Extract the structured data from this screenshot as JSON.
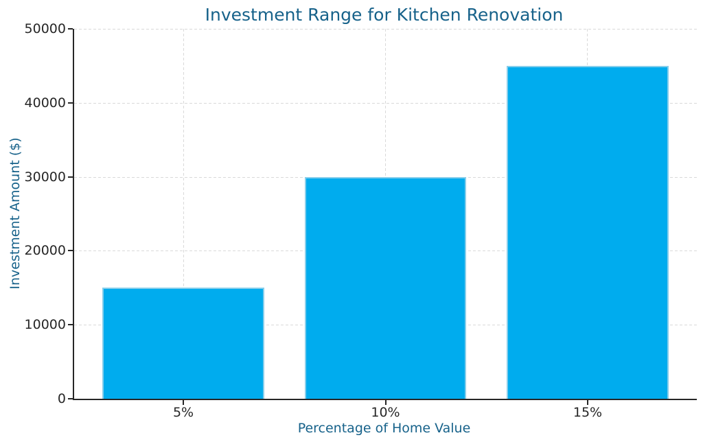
{
  "chart_data": {
    "type": "bar",
    "title": "Investment Range for Kitchen Renovation",
    "xlabel": "Percentage of Home Value",
    "ylabel": "Investment Amount ($)",
    "categories": [
      "5%",
      "10%",
      "15%"
    ],
    "values": [
      15000,
      30000,
      45000
    ],
    "ylim": [
      0,
      50000
    ],
    "yticks": [
      0,
      10000,
      20000,
      30000,
      40000,
      50000
    ],
    "ytick_labels": [
      "0",
      "10000",
      "20000",
      "30000",
      "40000",
      "50000"
    ],
    "x_positions": [
      0,
      1,
      2
    ],
    "xlim": [
      -0.54,
      2.54
    ],
    "bar_width": 0.8,
    "grid": "dashed, both axes",
    "legend": "none",
    "spines": "left and bottom only",
    "colors": {
      "bar_fill": "#00ACEE",
      "bar_edge": "#87CEEB",
      "title_text": "#17628a",
      "axis_label_text": "#17628a",
      "tick_label_text": "#262626",
      "spine": "#262626",
      "gridline": "#d9d9d9",
      "background": "#ffffff"
    }
  }
}
